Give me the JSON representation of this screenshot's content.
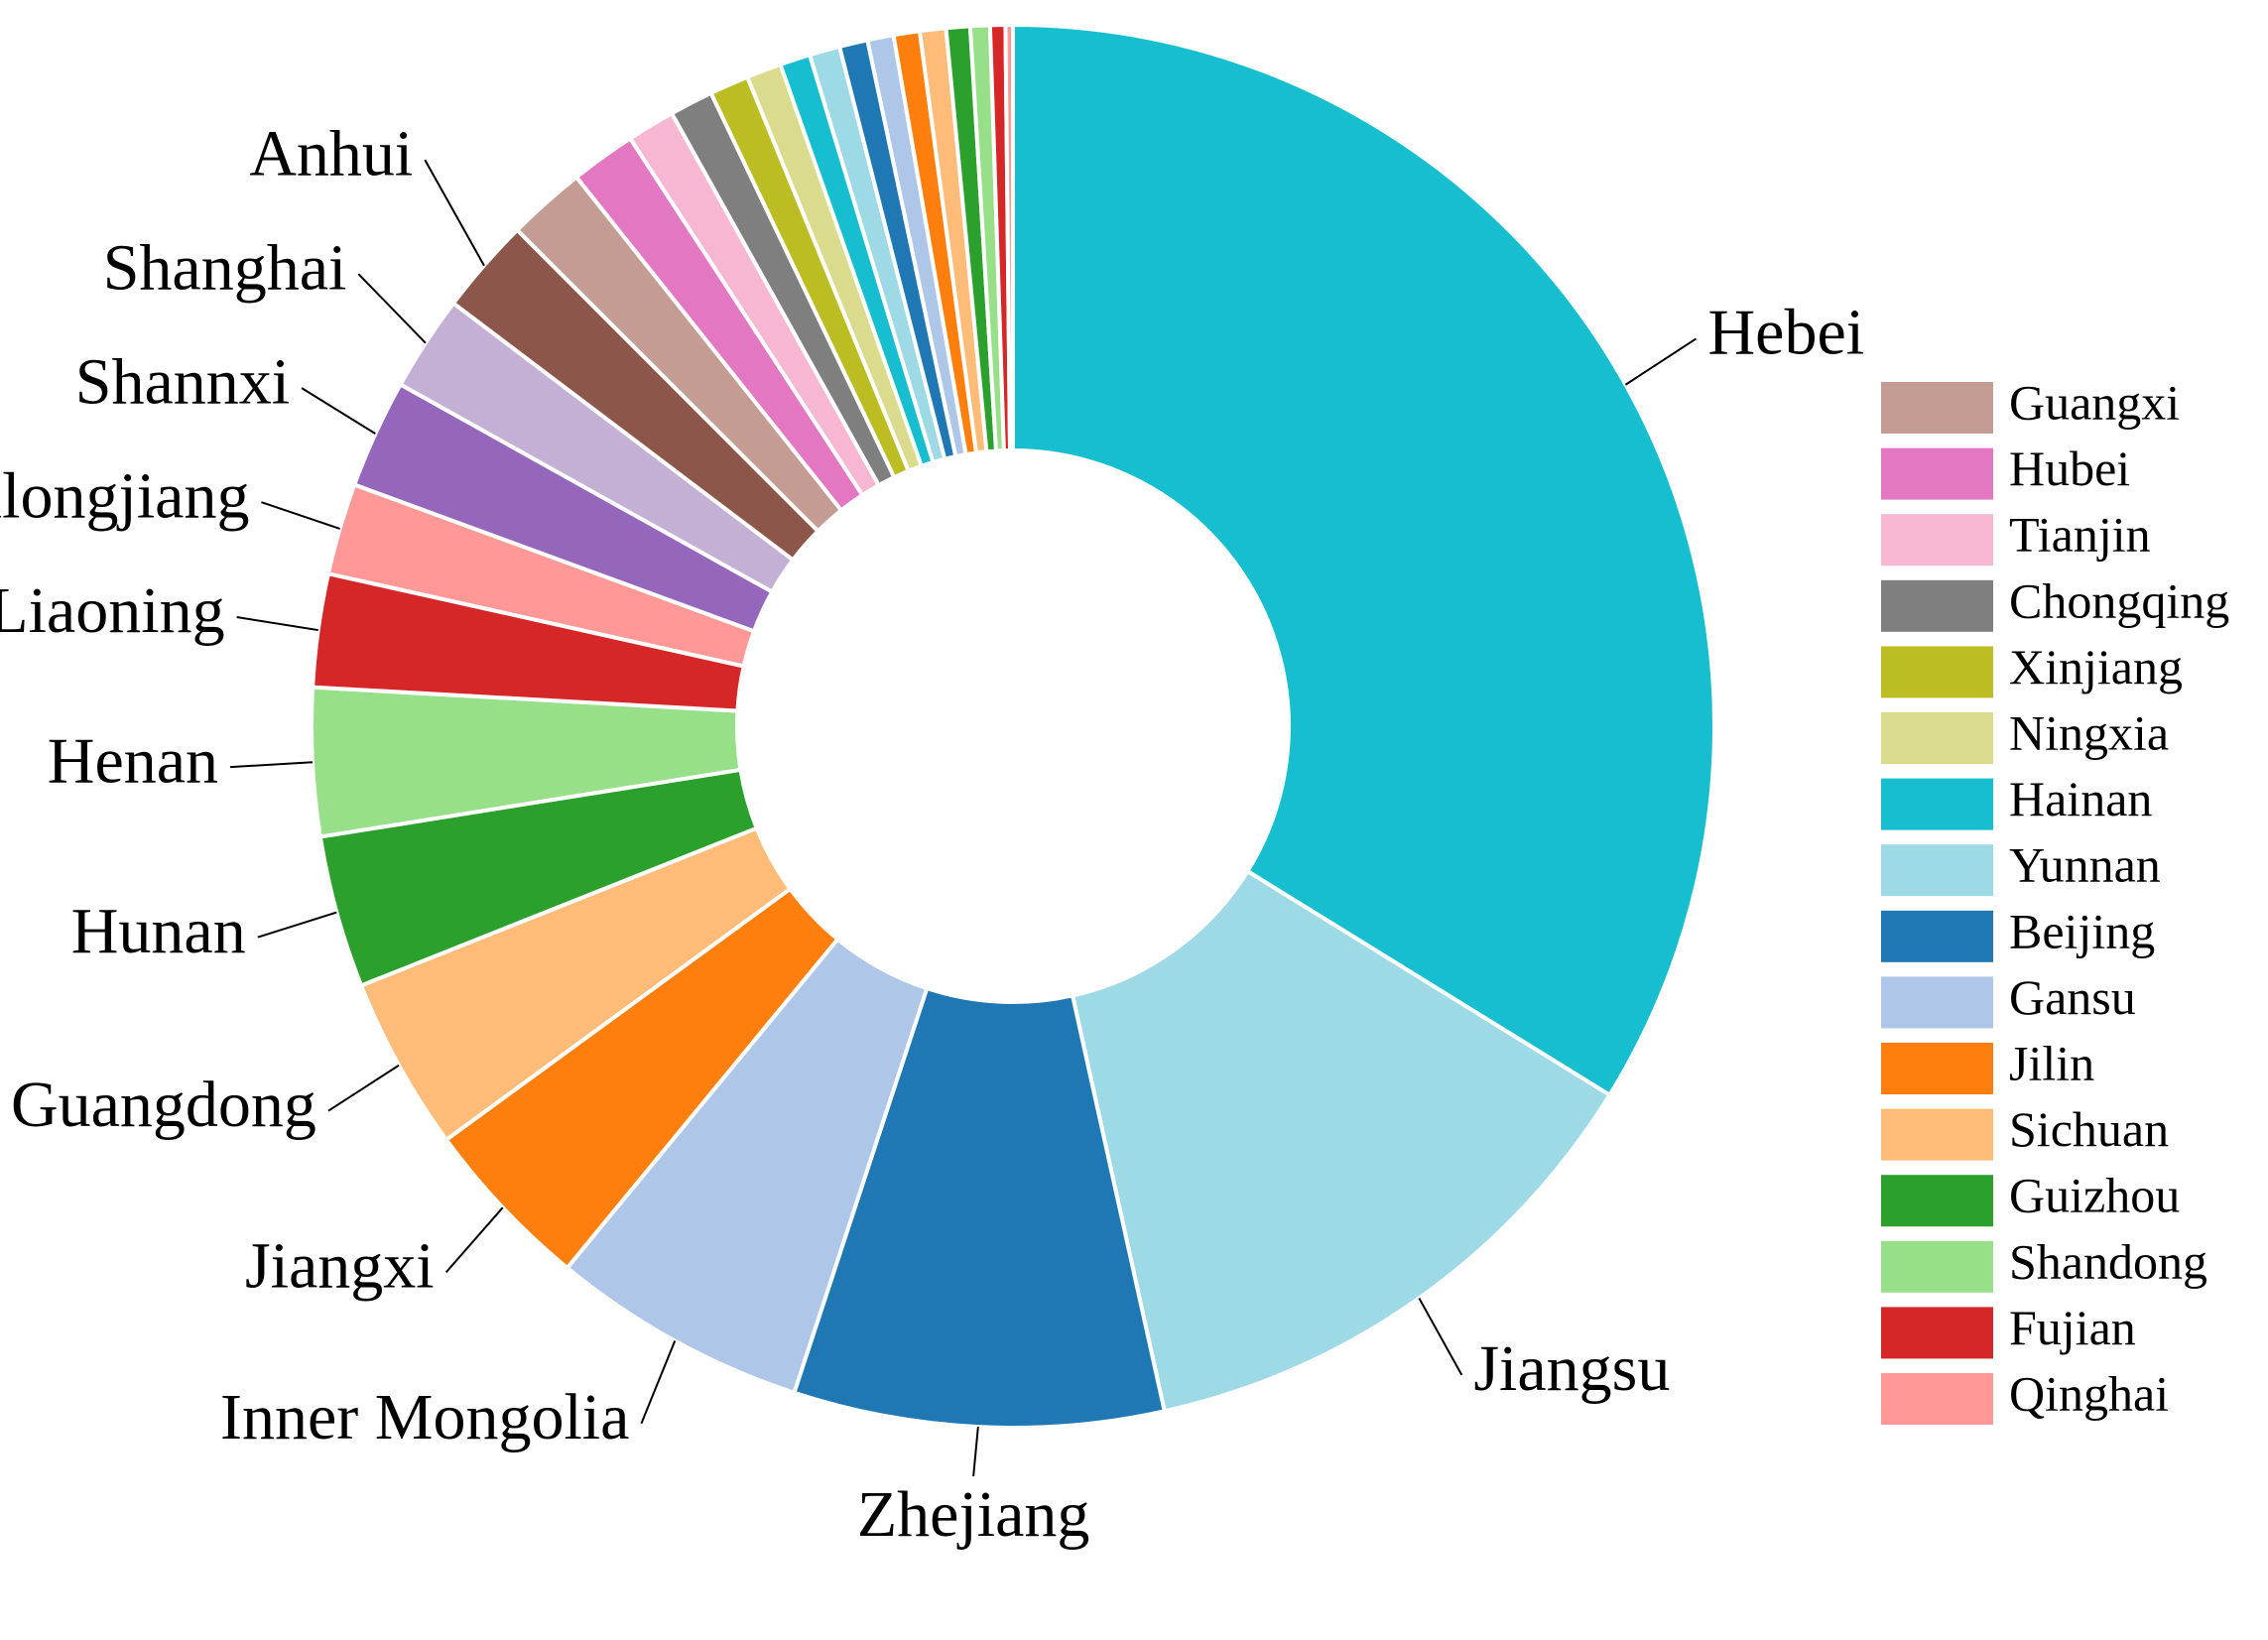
{
  "chart_data": {
    "type": "donut",
    "categories": [
      "Hebei",
      "Jiangsu",
      "Zhejiang",
      "Inner Mongolia",
      "Jiangxi",
      "Guangdong",
      "Hunan",
      "Henan",
      "Liaoning",
      "Heilongjiang",
      "Shannxi",
      "Shanghai",
      "Anhui",
      "Guangxi",
      "Hubei",
      "Tianjin",
      "Chongqing",
      "Xinjiang",
      "Ningxia",
      "Hainan",
      "Yunnan",
      "Beijing",
      "Gansu",
      "Jilin",
      "Sichuan",
      "Guizhou",
      "Shandong",
      "Fujian",
      "Qinghai"
    ],
    "values": [
      33.75,
      12.7,
      8.5,
      5.9,
      4.0,
      4.0,
      3.5,
      3.4,
      2.6,
      2.1,
      2.5,
      2.2,
      2.2,
      1.8,
      1.5,
      1.1,
      1.0,
      0.9,
      0.8,
      0.7,
      0.7,
      0.65,
      0.6,
      0.6,
      0.6,
      0.55,
      0.45,
      0.35,
      0.17
    ],
    "colors": [
      "#17becf",
      "#9edae5",
      "#1f77b4",
      "#aec7e8",
      "#ff7f0e",
      "#ffbb78",
      "#2ca02c",
      "#98df8a",
      "#d62728",
      "#ff9896",
      "#9467bd",
      "#c5b0d5",
      "#8c564b",
      "#c49c94",
      "#e377c2",
      "#f7b6d2",
      "#7f7f7f",
      "#bcbd22",
      "#dbdb8d",
      "#17becf",
      "#9edae5",
      "#1f77b4",
      "#aec7e8",
      "#ff7f0e",
      "#ffbb78",
      "#2ca02c",
      "#98df8a",
      "#d62728",
      "#ff9896"
    ],
    "legend": "right"
  }
}
